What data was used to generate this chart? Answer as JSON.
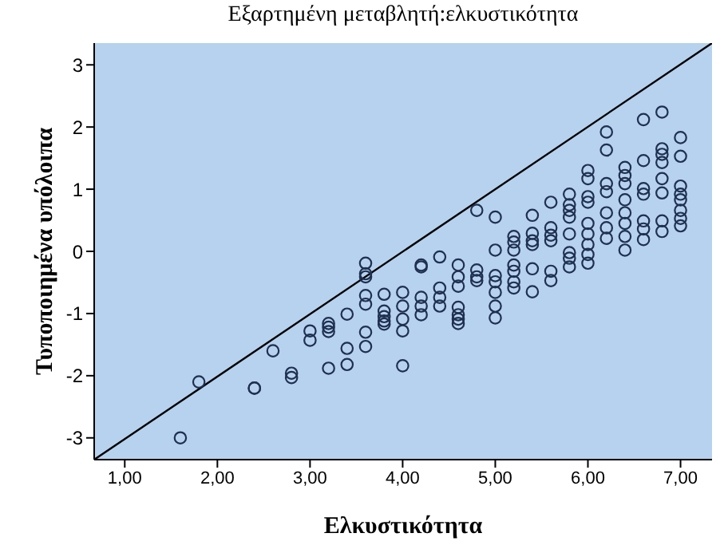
{
  "chart_data": {
    "type": "scatter",
    "title": "Εξαρτημένη μεταβλητή:ελκυστικότητα",
    "xlabel": "Ελκυστικότητα",
    "ylabel": "Τυποποιημένα υπόλοιπα",
    "xlim": [
      0.67,
      7.34
    ],
    "ylim": [
      -3.35,
      3.35
    ],
    "xticks": [
      {
        "value": 1,
        "label": "1,00"
      },
      {
        "value": 2,
        "label": "2,00"
      },
      {
        "value": 3,
        "label": "3,00"
      },
      {
        "value": 4,
        "label": "4,00"
      },
      {
        "value": 5,
        "label": "5,00"
      },
      {
        "value": 6,
        "label": "6,00"
      },
      {
        "value": 7,
        "label": "7,00"
      }
    ],
    "yticks": [
      -3,
      -2,
      -1,
      0,
      1,
      2,
      3
    ],
    "grid": false,
    "series": [
      {
        "marker": "circle",
        "color": "#1f3050",
        "x": [
          1.6,
          1.8,
          2.4,
          2.4,
          2.6,
          2.8,
          2.8,
          3.0,
          3.0,
          3.2,
          3.2,
          3.2,
          3.2,
          3.4,
          3.4,
          3.4,
          3.6,
          3.6,
          3.6,
          3.6,
          3.6,
          3.6,
          3.6,
          3.8,
          3.8,
          3.8,
          3.8,
          3.8,
          4.0,
          4.0,
          4.0,
          4.0,
          4.0,
          4.2,
          4.2,
          4.2,
          4.2,
          4.2,
          4.4,
          4.4,
          4.4,
          4.4,
          4.6,
          4.6,
          4.6,
          4.6,
          4.6,
          4.6,
          4.6,
          4.8,
          4.8,
          4.8,
          4.8,
          5.0,
          5.0,
          5.0,
          5.0,
          5.0,
          5.0,
          5.0,
          5.2,
          5.2,
          5.2,
          5.2,
          5.2,
          5.2,
          5.2,
          5.4,
          5.4,
          5.4,
          5.4,
          5.4,
          5.4,
          5.6,
          5.6,
          5.6,
          5.6,
          5.6,
          5.6,
          5.8,
          5.8,
          5.8,
          5.8,
          5.8,
          5.8,
          5.8,
          5.8,
          6.0,
          6.0,
          6.0,
          6.0,
          6.0,
          6.0,
          6.0,
          6.0,
          6.0,
          6.2,
          6.2,
          6.2,
          6.2,
          6.2,
          6.2,
          6.2,
          6.4,
          6.4,
          6.4,
          6.4,
          6.4,
          6.4,
          6.4,
          6.4,
          6.6,
          6.6,
          6.6,
          6.6,
          6.6,
          6.6,
          6.6,
          6.8,
          6.8,
          6.8,
          6.8,
          6.8,
          6.8,
          6.8,
          6.8,
          7.0,
          7.0,
          7.0,
          7.0,
          7.0,
          7.0,
          7.0,
          7.0
        ],
        "values": [
          -3.0,
          -2.1,
          -2.2,
          -2.2,
          -1.6,
          -1.96,
          -2.03,
          -1.28,
          -1.43,
          -1.16,
          -1.22,
          -1.29,
          -1.88,
          -1.01,
          -1.56,
          -1.82,
          -0.19,
          -0.36,
          -0.41,
          -0.71,
          -0.85,
          -1.3,
          -1.53,
          -0.69,
          -0.96,
          -1.05,
          -1.12,
          -1.17,
          -0.66,
          -0.88,
          -1.09,
          -1.28,
          -1.84,
          -0.22,
          -0.25,
          -0.74,
          -0.88,
          -1.02,
          -0.09,
          -0.59,
          -0.74,
          -0.88,
          -0.22,
          -0.41,
          -0.56,
          -0.9,
          -1.02,
          -1.09,
          -1.16,
          0.66,
          -0.3,
          -0.41,
          -0.47,
          0.55,
          0.02,
          -0.39,
          -0.49,
          -0.66,
          -0.88,
          -1.07,
          0.24,
          0.15,
          0.02,
          -0.22,
          -0.32,
          -0.49,
          -0.59,
          0.58,
          0.29,
          0.17,
          0.11,
          -0.28,
          -0.65,
          0.79,
          0.38,
          0.26,
          0.17,
          -0.32,
          -0.47,
          0.92,
          0.75,
          0.66,
          0.55,
          0.28,
          -0.02,
          -0.11,
          -0.25,
          1.3,
          1.17,
          0.88,
          0.79,
          0.45,
          0.28,
          0.11,
          -0.05,
          -0.19,
          1.92,
          1.63,
          1.09,
          0.96,
          0.62,
          0.38,
          0.21,
          1.35,
          1.22,
          1.09,
          0.83,
          0.62,
          0.45,
          0.24,
          0.02,
          2.12,
          1.46,
          1.01,
          0.92,
          0.49,
          0.36,
          0.19,
          2.24,
          1.65,
          1.56,
          1.43,
          1.17,
          0.94,
          0.49,
          0.32,
          1.83,
          1.53,
          1.05,
          0.92,
          0.83,
          0.66,
          0.53,
          0.41
        ]
      },
      {
        "type": "line",
        "marker": "none",
        "color": "#000000",
        "x": [
          0.67,
          7.34
        ],
        "values": [
          -3.35,
          3.35
        ]
      }
    ]
  }
}
